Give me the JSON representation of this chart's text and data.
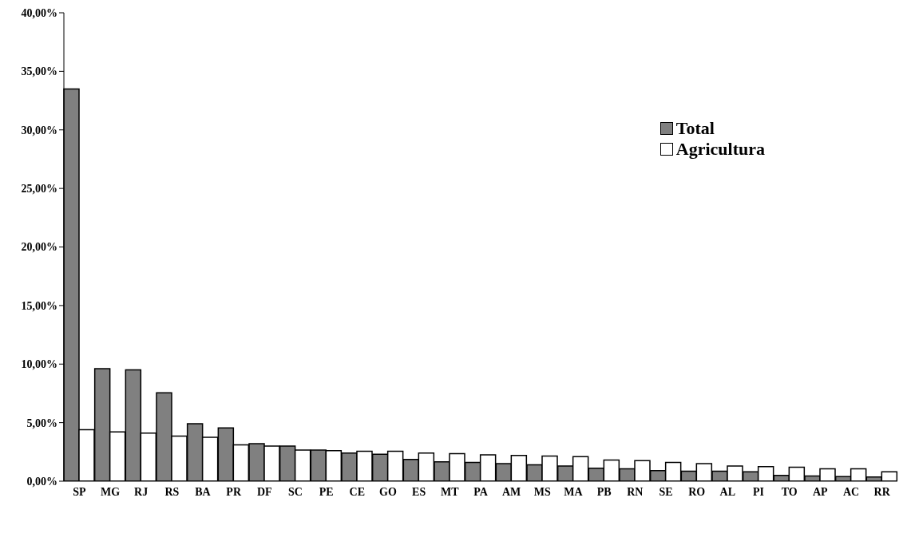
{
  "chart_data": {
    "type": "bar",
    "categories": [
      "SP",
      "MG",
      "RJ",
      "RS",
      "BA",
      "PR",
      "DF",
      "SC",
      "PE",
      "CE",
      "GO",
      "ES",
      "MT",
      "PA",
      "AM",
      "MS",
      "MA",
      "PB",
      "RN",
      "SE",
      "RO",
      "AL",
      "PI",
      "TO",
      "AP",
      "AC",
      "RR"
    ],
    "series": [
      {
        "name": "Total",
        "color": "#808080",
        "values": [
          33.5,
          9.6,
          9.5,
          7.55,
          4.9,
          4.55,
          3.2,
          3.0,
          2.65,
          2.4,
          2.3,
          1.85,
          1.65,
          1.6,
          1.5,
          1.4,
          1.3,
          1.1,
          1.05,
          0.9,
          0.85,
          0.85,
          0.8,
          0.5,
          0.45,
          0.4,
          0.35
        ]
      },
      {
        "name": "Agricultura",
        "color": "#ffffff",
        "values": [
          4.4,
          4.2,
          4.1,
          3.85,
          3.75,
          3.1,
          3.0,
          2.65,
          2.6,
          2.55,
          2.55,
          2.4,
          2.35,
          2.25,
          2.2,
          2.15,
          2.1,
          1.8,
          1.75,
          1.6,
          1.5,
          1.3,
          1.25,
          1.2,
          1.05,
          1.05,
          0.8
        ]
      }
    ],
    "ylim": [
      0,
      40
    ],
    "yticks": [
      {
        "value": 0,
        "label": "0,00%"
      },
      {
        "value": 5,
        "label": "5,00%"
      },
      {
        "value": 10,
        "label": "10,00%"
      },
      {
        "value": 15,
        "label": "15,00%"
      },
      {
        "value": 20,
        "label": "20,00%"
      },
      {
        "value": 25,
        "label": "25,00%"
      },
      {
        "value": 30,
        "label": "30,00%"
      },
      {
        "value": 35,
        "label": "35,00%"
      },
      {
        "value": 40,
        "label": "40,00%"
      }
    ],
    "grid": false,
    "legend": "top right"
  }
}
